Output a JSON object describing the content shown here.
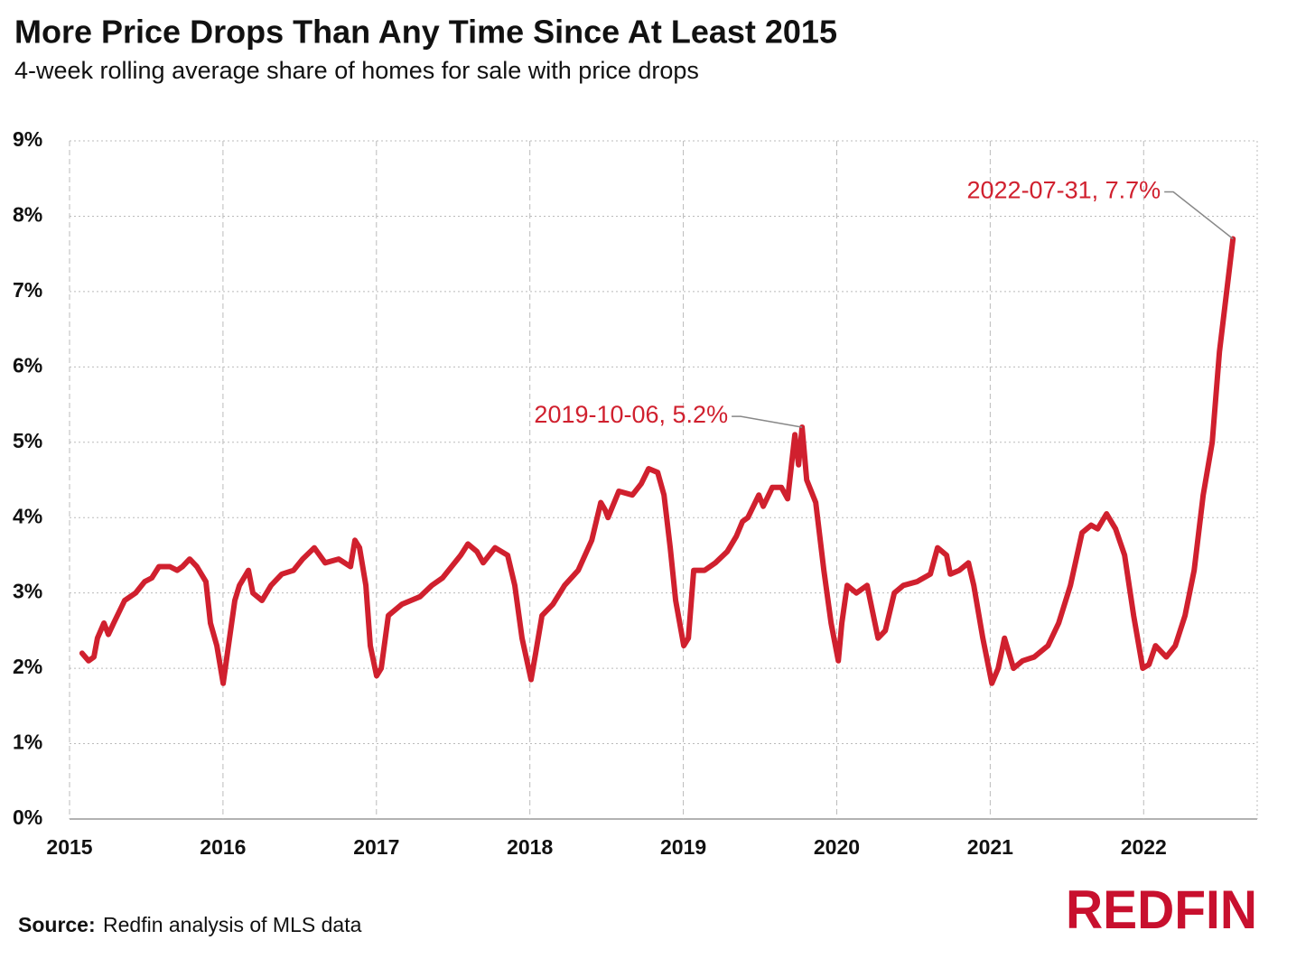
{
  "chart_data": {
    "type": "line",
    "title": "More Price Drops Than Any Time Since At Least 2015",
    "subtitle": "4-week rolling average share of homes for sale with price drops",
    "x": [
      2015.082,
      2015.124,
      2015.159,
      2015.182,
      2015.224,
      2015.253,
      2015.288,
      2015.359,
      2015.43,
      2015.489,
      2015.536,
      2015.583,
      2015.654,
      2015.701,
      2015.736,
      2015.783,
      2015.83,
      2015.889,
      2015.918,
      2015.96,
      2016.001,
      2016.077,
      2016.107,
      2016.166,
      2016.195,
      2016.254,
      2016.313,
      2016.383,
      2016.46,
      2016.519,
      2016.595,
      2016.666,
      2016.754,
      2016.831,
      2016.86,
      2016.89,
      2016.931,
      2016.96,
      2017.001,
      2017.031,
      2017.078,
      2017.166,
      2017.225,
      2017.284,
      2017.361,
      2017.431,
      2017.49,
      2017.549,
      2017.596,
      2017.655,
      2017.696,
      2017.773,
      2017.855,
      2017.902,
      2017.949,
      2018.008,
      2018.038,
      2018.079,
      2018.15,
      2018.226,
      2018.315,
      2018.403,
      2018.462,
      2018.491,
      2018.509,
      2018.58,
      2018.668,
      2018.726,
      2018.774,
      2018.833,
      2018.874,
      2018.915,
      2018.95,
      2019.003,
      2019.033,
      2019.068,
      2019.139,
      2019.209,
      2019.286,
      2019.345,
      2019.386,
      2019.421,
      2019.492,
      2019.521,
      2019.58,
      2019.639,
      2019.68,
      2019.727,
      2019.751,
      2019.774,
      2019.804,
      2019.863,
      2019.916,
      2019.963,
      2020.01,
      2020.033,
      2020.068,
      2020.128,
      2020.198,
      2020.269,
      2020.316,
      2020.375,
      2020.434,
      2020.522,
      2020.61,
      2020.657,
      2020.716,
      2020.74,
      2020.799,
      2020.858,
      2020.893,
      2020.952,
      2021.011,
      2021.052,
      2021.093,
      2021.152,
      2021.211,
      2021.287,
      2021.376,
      2021.446,
      2021.523,
      2021.599,
      2021.658,
      2021.7,
      2021.758,
      2021.817,
      2021.876,
      2021.935,
      2021.994,
      2022.035,
      2022.077,
      2022.147,
      2022.206,
      2022.27,
      2022.329,
      2022.388,
      2022.447,
      2022.494,
      2022.541,
      2022.582
    ],
    "values": [
      2.2,
      2.1,
      2.15,
      2.4,
      2.6,
      2.45,
      2.6,
      2.9,
      3.0,
      3.15,
      3.2,
      3.35,
      3.35,
      3.3,
      3.35,
      3.45,
      3.35,
      3.15,
      2.6,
      2.3,
      1.8,
      2.9,
      3.1,
      3.3,
      3.0,
      2.9,
      3.1,
      3.25,
      3.3,
      3.45,
      3.6,
      3.4,
      3.45,
      3.35,
      3.7,
      3.6,
      3.1,
      2.3,
      1.9,
      2.0,
      2.7,
      2.85,
      2.9,
      2.95,
      3.1,
      3.2,
      3.35,
      3.5,
      3.65,
      3.55,
      3.4,
      3.6,
      3.5,
      3.1,
      2.4,
      1.85,
      2.2,
      2.7,
      2.85,
      3.1,
      3.3,
      3.7,
      4.2,
      4.1,
      4.0,
      4.35,
      4.3,
      4.45,
      4.65,
      4.6,
      4.3,
      3.6,
      2.9,
      2.3,
      2.4,
      3.3,
      3.3,
      3.4,
      3.55,
      3.75,
      3.95,
      4.0,
      4.3,
      4.15,
      4.4,
      4.4,
      4.25,
      5.1,
      4.7,
      5.2,
      4.5,
      4.2,
      3.3,
      2.6,
      2.1,
      2.6,
      3.1,
      3.0,
      3.1,
      2.4,
      2.5,
      3.0,
      3.1,
      3.15,
      3.25,
      3.6,
      3.5,
      3.25,
      3.3,
      3.4,
      3.1,
      2.4,
      1.8,
      2.0,
      2.4,
      2.0,
      2.1,
      2.15,
      2.3,
      2.6,
      3.1,
      3.8,
      3.9,
      3.85,
      4.05,
      3.85,
      3.5,
      2.7,
      2.0,
      2.05,
      2.3,
      2.15,
      2.3,
      2.7,
      3.3,
      4.3,
      5.0,
      6.2,
      7.0,
      7.7
    ],
    "color": "#d0202e",
    "xlim": [
      2015,
      2022.74
    ],
    "xticks": [
      2015,
      2016,
      2017,
      2018,
      2019,
      2020,
      2021,
      2022
    ],
    "ylim": [
      0,
      9
    ],
    "yticks": [
      {
        "value": 0,
        "label": "0%"
      },
      {
        "value": 1,
        "label": "1%"
      },
      {
        "value": 2,
        "label": "2%"
      },
      {
        "value": 3,
        "label": "3%"
      },
      {
        "value": 4,
        "label": "4%"
      },
      {
        "value": 5,
        "label": "5%"
      },
      {
        "value": 6,
        "label": "6%"
      },
      {
        "value": 7,
        "label": "7%"
      },
      {
        "value": 8,
        "label": "8%"
      },
      {
        "value": 9,
        "label": "9%"
      }
    ],
    "grid": true,
    "annotations": [
      {
        "text": "2019-10-06, 5.2%",
        "x": 2019.774,
        "y": 5.2
      },
      {
        "text": "2022-07-31, 7.7%",
        "x": 2022.582,
        "y": 7.7
      }
    ],
    "source_label": "Source:",
    "source": "Redfin analysis of MLS data",
    "logo": "REDFIN"
  }
}
